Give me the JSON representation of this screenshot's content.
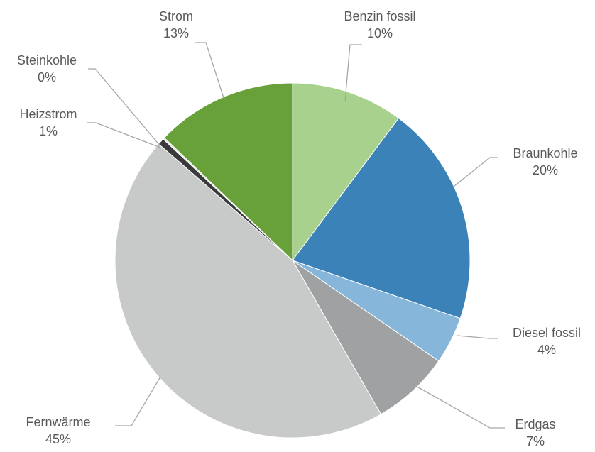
{
  "chart_data": {
    "type": "pie",
    "start_angle_deg": 0,
    "direction": "clockwise",
    "slices": [
      {
        "label": "Benzin fossil",
        "value": 10.2,
        "value_label": "10%",
        "color": "#a9d18e"
      },
      {
        "label": "Braunkohle",
        "value": 20.1,
        "value_label": "20%",
        "color": "#3a82b8"
      },
      {
        "label": "Diesel fossil",
        "value": 4.3,
        "value_label": "4%",
        "color": "#87b6db"
      },
      {
        "label": "Erdgas",
        "value": 7.1,
        "value_label": "7%",
        "color": "#9fa1a3"
      },
      {
        "label": "Fernwärme",
        "value": 44.7,
        "value_label": "45%",
        "color": "#c8c9c9"
      },
      {
        "label": "Heizstrom",
        "value": 0.6,
        "value_label": "1%",
        "color": "#3a3a3a"
      },
      {
        "label": "Steinkohle",
        "value": 0.15,
        "value_label": "0%",
        "color": "#e0e0e0"
      },
      {
        "label": "Strom",
        "value": 12.85,
        "value_label": "13%",
        "color": "#68a03a"
      }
    ]
  }
}
